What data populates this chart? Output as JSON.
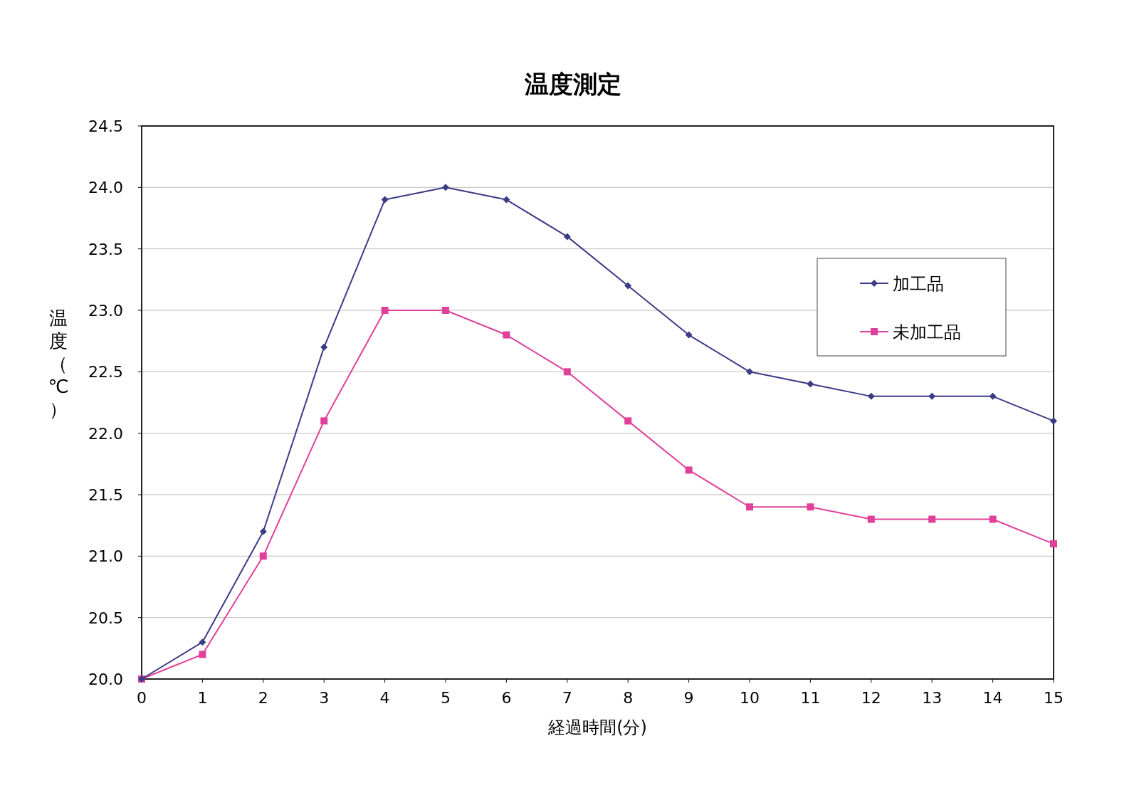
{
  "chart_data": {
    "type": "line",
    "title": "温度測定",
    "xlabel": "経過時間(分)",
    "ylabel": "温度（℃）",
    "x": [
      0,
      1,
      2,
      3,
      4,
      5,
      6,
      7,
      8,
      9,
      10,
      11,
      12,
      13,
      14,
      15
    ],
    "series": [
      {
        "name": "加工品",
        "color": "#3b3b86",
        "marker": "diamond",
        "values": [
          20.0,
          20.3,
          21.2,
          22.7,
          23.9,
          24.0,
          23.9,
          23.6,
          23.2,
          22.8,
          22.5,
          22.4,
          22.3,
          22.3,
          22.3,
          22.1
        ]
      },
      {
        "name": "未加工品",
        "color": "#e0409a",
        "marker": "square",
        "values": [
          20.0,
          20.2,
          21.0,
          22.1,
          23.0,
          23.0,
          22.8,
          22.5,
          22.1,
          21.7,
          21.4,
          21.4,
          21.3,
          21.3,
          21.3,
          21.1
        ]
      }
    ],
    "xlim": [
      0,
      15
    ],
    "xticks": [
      0,
      1,
      2,
      3,
      4,
      5,
      6,
      7,
      8,
      9,
      10,
      11,
      12,
      13,
      14,
      15
    ],
    "ylim": [
      20,
      24.5
    ],
    "yticks": [
      {
        "value": 20,
        "label": "20.0"
      },
      {
        "value": 20.5,
        "label": "20.5"
      },
      {
        "value": 21,
        "label": "21.0"
      },
      {
        "value": 21.5,
        "label": "21.5"
      },
      {
        "value": 22,
        "label": "22.0"
      },
      {
        "value": 22.5,
        "label": "22.5"
      },
      {
        "value": 23,
        "label": "23.0"
      },
      {
        "value": 23.5,
        "label": "23.5"
      },
      {
        "value": 24,
        "label": "24.0"
      },
      {
        "value": 24.5,
        "label": "24.5"
      }
    ],
    "grid": "y",
    "legend": "right",
    "line_style": "solid"
  }
}
